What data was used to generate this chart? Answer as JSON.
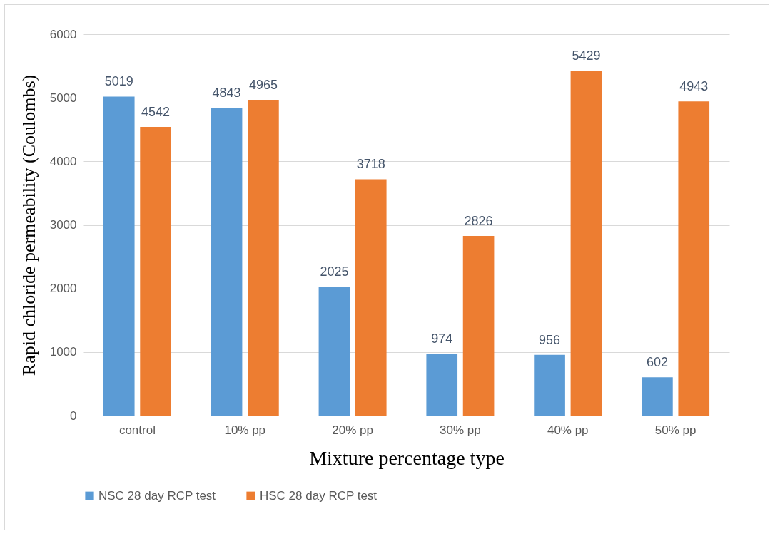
{
  "chart_data": {
    "type": "bar",
    "xlabel": "Mixture percentage type",
    "ylabel": "Rapid chloride permeability (Coulombs)",
    "categories": [
      "control",
      "10% pp",
      "20% pp",
      "30% pp",
      "40% pp",
      "50% pp"
    ],
    "series": [
      {
        "name": "NSC 28 day RCP test",
        "color": "#5b9bd5",
        "values": [
          5019,
          4843,
          2025,
          974,
          956,
          602
        ]
      },
      {
        "name": "HSC 28 day RCP test",
        "color": "#ed7d31",
        "values": [
          4542,
          4965,
          3718,
          2826,
          5429,
          4943
        ]
      }
    ],
    "ylim": [
      0,
      6000
    ],
    "yticks": [
      0,
      1000,
      2000,
      3000,
      4000,
      5000,
      6000
    ],
    "grid": "y",
    "legend": "bottom",
    "data_labels": true
  }
}
